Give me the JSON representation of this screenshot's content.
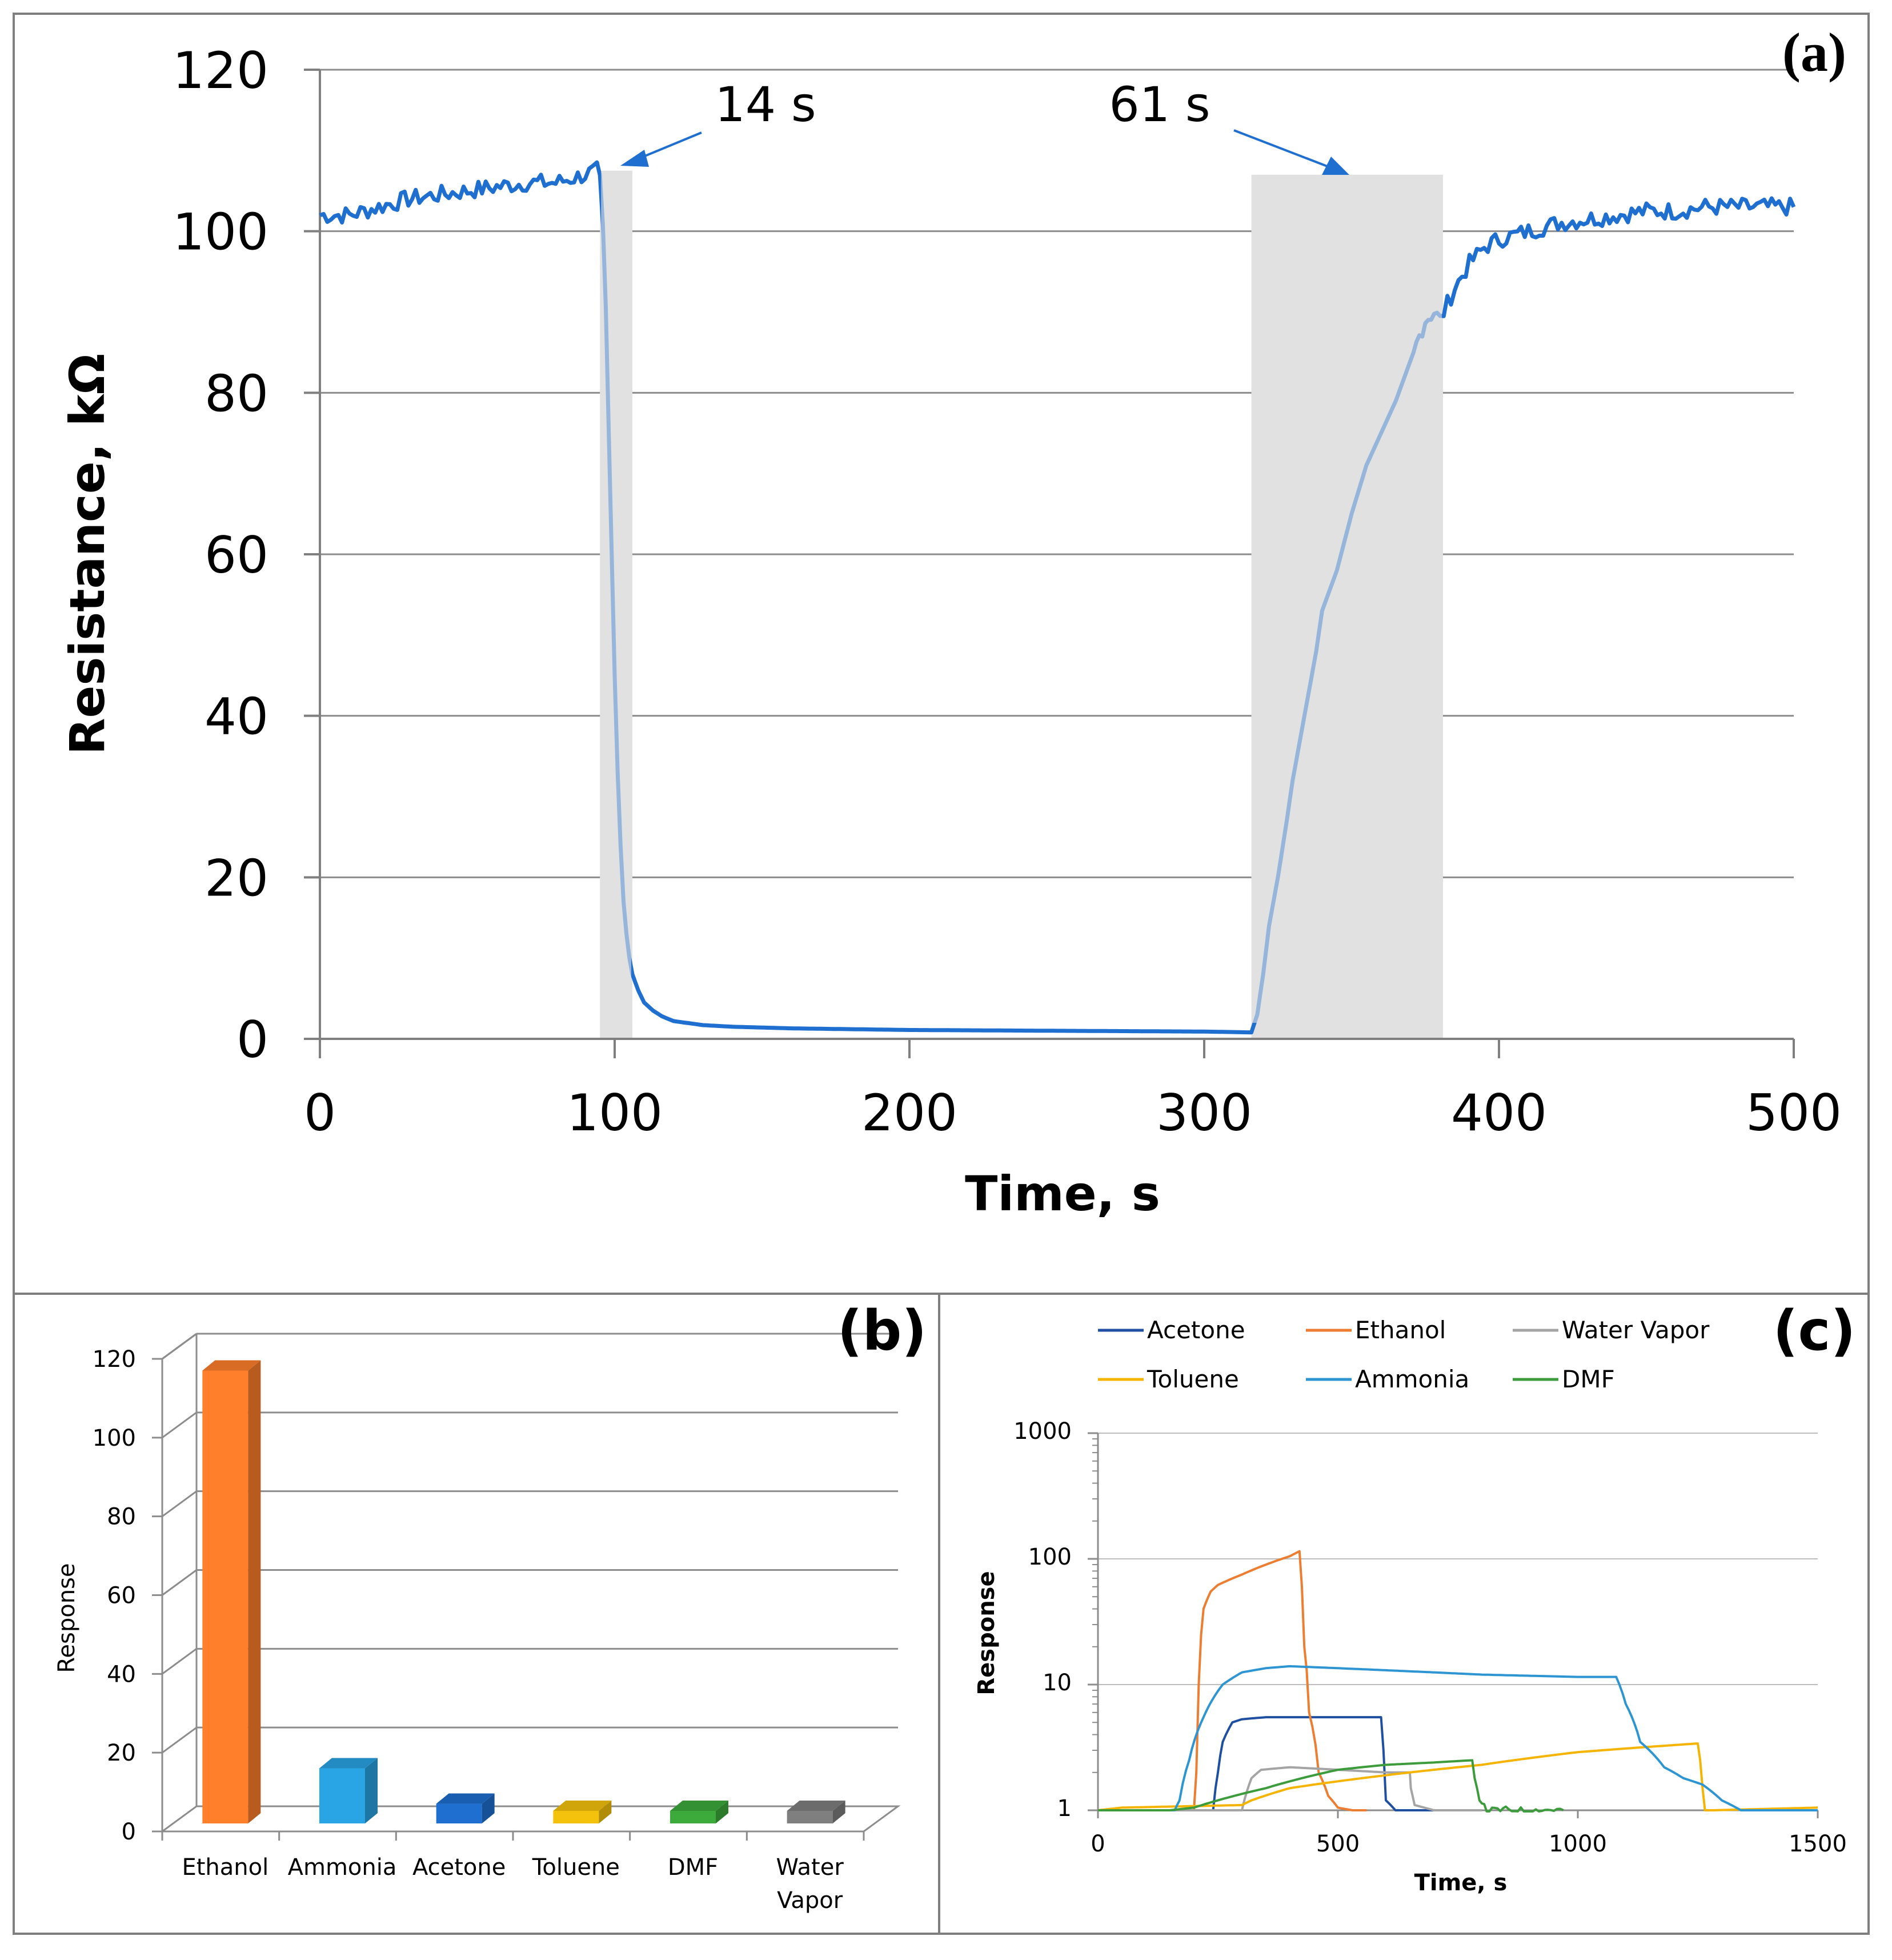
{
  "chart_data": [
    {
      "panel": "(a)",
      "type": "line",
      "xlabel": "Time, s",
      "ylabel": "Resistance, kΩ",
      "xlim": [
        0,
        500
      ],
      "ylim": [
        0,
        120
      ],
      "xticks": [
        0,
        100,
        200,
        300,
        400,
        500
      ],
      "yticks": [
        0,
        20,
        40,
        60,
        80,
        100,
        120
      ],
      "grid": "horizontal",
      "series": [
        {
          "name": "Resistance",
          "color": "#1f6fd1",
          "x": [
            0,
            10,
            20,
            30,
            40,
            50,
            60,
            70,
            80,
            90,
            94,
            95,
            96,
            97,
            98,
            99,
            100,
            101,
            102,
            103,
            104,
            105,
            106,
            108,
            110,
            113,
            116,
            120,
            130,
            140,
            160,
            200,
            250,
            300,
            316,
            318,
            320,
            322,
            325,
            328,
            330,
            332,
            335,
            338,
            340,
            345,
            350,
            355,
            360,
            365,
            368,
            370,
            372,
            375,
            378,
            380,
            385,
            390,
            395,
            400,
            410,
            420,
            430,
            440,
            450,
            460,
            470,
            480,
            490,
            500
          ],
          "y": [
            102,
            102,
            103,
            104,
            104.5,
            105,
            105.5,
            106,
            106,
            107,
            107.5,
            106,
            100,
            90,
            75,
            60,
            45,
            33,
            24,
            17,
            13,
            10,
            8,
            6,
            4.5,
            3.5,
            2.8,
            2.2,
            1.7,
            1.5,
            1.3,
            1.1,
            1.0,
            0.9,
            0.8,
            3,
            8,
            14,
            20,
            27,
            32,
            36,
            42,
            48,
            53,
            58,
            65,
            71,
            75,
            79,
            82,
            84,
            86,
            89,
            90,
            89,
            93,
            96,
            98,
            99,
            100,
            101,
            101.5,
            102,
            102.5,
            102.5,
            103,
            103,
            103,
            103
          ]
        }
      ],
      "shaded_regions": [
        {
          "x": [
            95,
            106
          ],
          "ymax": 107.5
        },
        {
          "x": [
            316,
            381
          ],
          "ymax": 107
        }
      ],
      "annotations": [
        {
          "text": "14 s",
          "x": 140,
          "y": 113,
          "arrow_to": [
            103,
            108
          ]
        },
        {
          "text": "61 s",
          "x": 283,
          "y": 113,
          "arrow_to": [
            349,
            106
          ]
        }
      ]
    },
    {
      "panel": "(b)",
      "type": "bar",
      "style": "3d",
      "ylabel": "Response",
      "xlabel": "",
      "ylim": [
        0,
        120
      ],
      "yticks": [
        0,
        20,
        40,
        60,
        80,
        100,
        120
      ],
      "categories": [
        "Ethanol",
        "Ammonia",
        "Acetone",
        "Toluene",
        "DMF",
        "Water Vapor"
      ],
      "category_lines": [
        [
          "Ethanol"
        ],
        [
          "Ammonia"
        ],
        [
          "Acetone"
        ],
        [
          "Toluene"
        ],
        [
          "DMF"
        ],
        [
          "Water",
          "Vapor"
        ]
      ],
      "values": [
        115,
        14,
        5,
        3,
        2,
        1
      ],
      "colors": [
        "#ff7f2a",
        "#29a4e4",
        "#1f6fd1",
        "#f4c20d",
        "#3cab3c",
        "#7f7f7f"
      ]
    },
    {
      "panel": "(c)",
      "type": "line",
      "yscale": "log",
      "xlabel": "Time, s",
      "ylabel": "Response",
      "xlim": [
        0,
        1500
      ],
      "ylim": [
        1,
        1000
      ],
      "xticks": [
        0,
        500,
        1000,
        1500
      ],
      "yticks": [
        1,
        10,
        100,
        1000
      ],
      "legend": "top",
      "series": [
        {
          "name": "Acetone",
          "color": "#1f4fa0",
          "x": [
            0,
            160,
            240,
            250,
            260,
            280,
            300,
            350,
            400,
            500,
            590,
            595,
            600,
            620,
            700
          ],
          "y": [
            1,
            1,
            1,
            2,
            3.5,
            5,
            5.3,
            5.5,
            5.5,
            5.5,
            5.5,
            3,
            1.2,
            1,
            1
          ]
        },
        {
          "name": "Ethanol",
          "color": "#ed7d31",
          "x": [
            0,
            100,
            200,
            205,
            210,
            220,
            235,
            250,
            300,
            350,
            400,
            420,
            425,
            430,
            440,
            460,
            480,
            500,
            530,
            560
          ],
          "y": [
            1,
            1,
            1,
            2,
            10,
            40,
            55,
            62,
            75,
            90,
            105,
            115,
            60,
            20,
            6,
            2,
            1.3,
            1.05,
            1,
            1
          ]
        },
        {
          "name": "Water Vapor",
          "color": "#a5a5a5",
          "x": [
            0,
            150,
            300,
            310,
            320,
            340,
            400,
            500,
            600,
            650,
            652,
            660,
            700,
            800
          ],
          "y": [
            1,
            1,
            1,
            1.4,
            1.8,
            2.1,
            2.2,
            2.1,
            2.0,
            2.0,
            1.5,
            1.1,
            1,
            1
          ]
        },
        {
          "name": "Toluene",
          "color": "#f4b400",
          "x": [
            0,
            50,
            300,
            320,
            400,
            500,
            600,
            700,
            800,
            900,
            1000,
            1100,
            1250,
            1255,
            1260,
            1265,
            1280,
            1500
          ],
          "y": [
            1,
            1.05,
            1.1,
            1.2,
            1.5,
            1.7,
            1.9,
            2.1,
            2.3,
            2.6,
            2.9,
            3.1,
            3.4,
            2.5,
            1.5,
            1,
            1,
            1.05
          ]
        },
        {
          "name": "Ammonia",
          "color": "#2e95d3",
          "x": [
            0,
            160,
            170,
            190,
            220,
            260,
            300,
            350,
            400,
            500,
            600,
            800,
            1000,
            1080,
            1100,
            1130,
            1180,
            1220,
            1260,
            1300,
            1340,
            1500
          ],
          "y": [
            1,
            1,
            1.2,
            2.5,
            5.5,
            10,
            12.5,
            13.5,
            14,
            13.5,
            13,
            12,
            11.5,
            11.5,
            7,
            3.5,
            2.2,
            1.8,
            1.6,
            1.2,
            1,
            1
          ]
        },
        {
          "name": "DMF",
          "color": "#3c9c3c",
          "x": [
            0,
            150,
            200,
            250,
            300,
            350,
            400,
            450,
            500,
            600,
            700,
            780,
            785,
            795,
            810,
            850,
            900,
            950,
            970
          ],
          "y": [
            1,
            1,
            1.05,
            1.2,
            1.35,
            1.5,
            1.7,
            1.9,
            2.1,
            2.3,
            2.4,
            2.5,
            1.8,
            1.2,
            1,
            1.02,
            1,
            1.02,
            1
          ]
        }
      ]
    }
  ]
}
